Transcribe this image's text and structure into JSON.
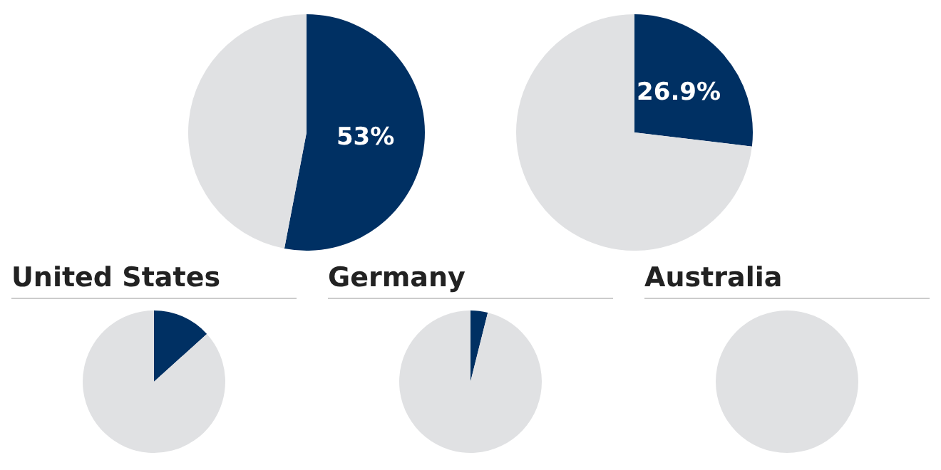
{
  "chart_data": [
    {
      "type": "pie",
      "categories": [
        null,
        null
      ],
      "values": [
        53,
        47
      ],
      "colors": [
        "#003063",
        "#e0e1e3"
      ],
      "value_labels": [
        "53%",
        null
      ]
    },
    {
      "type": "pie",
      "categories": [
        null,
        null
      ],
      "values": [
        26.9,
        73.1
      ],
      "colors": [
        "#003063",
        "#e0e1e3"
      ],
      "value_labels": [
        "26.9%",
        null
      ]
    },
    {
      "type": "pie",
      "title": "United States",
      "categories": [
        null,
        null
      ],
      "values": [
        13.3,
        86.7
      ],
      "colors": [
        "#003063",
        "#e0e1e3"
      ]
    },
    {
      "type": "pie",
      "title": "Germany",
      "categories": [
        null,
        null
      ],
      "values": [
        3.9,
        96.1
      ],
      "colors": [
        "#003063",
        "#e0e1e3"
      ]
    },
    {
      "type": "pie",
      "title": "Australia",
      "categories": [
        null,
        null
      ],
      "values": [
        0,
        100
      ],
      "colors": [
        "#003063",
        "#e0e1e3"
      ]
    }
  ]
}
